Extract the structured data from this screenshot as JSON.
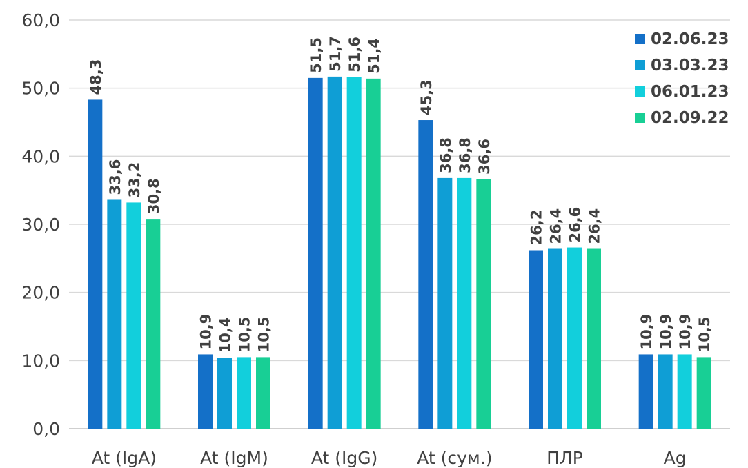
{
  "chart_data": {
    "type": "bar",
    "categories": [
      "At (IgA)",
      "At (IgM)",
      "At (IgG)",
      "At (сум.)",
      "ПЛР",
      "Ag"
    ],
    "series": [
      {
        "name": "02.06.23",
        "color": "#1470c8",
        "values": [
          48.3,
          10.9,
          51.5,
          45.3,
          26.2,
          10.9
        ],
        "labels": [
          "48,3",
          "10,9",
          "51,5",
          "45,3",
          "26,2",
          "10,9"
        ]
      },
      {
        "name": "03.03.23",
        "color": "#0f9ed5",
        "values": [
          33.6,
          10.4,
          51.7,
          36.8,
          26.4,
          10.9
        ],
        "labels": [
          "33,6",
          "10,4",
          "51,7",
          "36,8",
          "26,4",
          "10,9"
        ]
      },
      {
        "name": "06.01.23",
        "color": "#12cfdc",
        "values": [
          33.2,
          10.5,
          51.6,
          36.8,
          26.6,
          10.9
        ],
        "labels": [
          "33,2",
          "10,5",
          "51,6",
          "36,8",
          "26,6",
          "10,9"
        ]
      },
      {
        "name": "02.09.22",
        "color": "#18cf95",
        "values": [
          30.8,
          10.5,
          51.4,
          36.6,
          26.4,
          10.5
        ],
        "labels": [
          "30,8",
          "10,5",
          "51,4",
          "36,6",
          "26,4",
          "10,5"
        ]
      }
    ],
    "ylim": [
      0,
      60
    ],
    "yticks": [
      0,
      10,
      20,
      30,
      40,
      50,
      60
    ],
    "ytick_labels": [
      "0,0",
      "10,0",
      "20,0",
      "30,0",
      "40,0",
      "50,0",
      "60,0"
    ],
    "grid": true,
    "legend_position": "top-right",
    "title": "",
    "xlabel": "",
    "ylabel": ""
  }
}
